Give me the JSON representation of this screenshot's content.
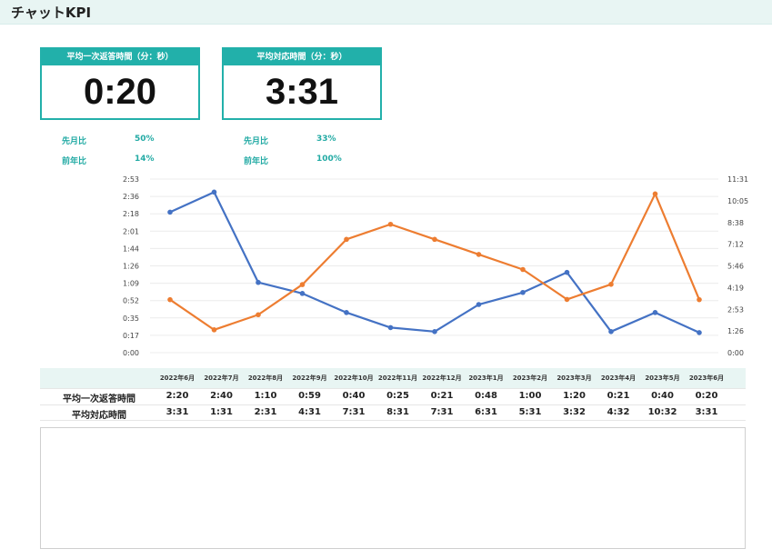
{
  "page": {
    "title": "チャットKPI"
  },
  "kpis": [
    {
      "label": "平均一次返答時間（分：秒）",
      "value": "0:20",
      "mom_label": "先月比",
      "mom": "50%",
      "yoy_label": "前年比",
      "yoy": "14%"
    },
    {
      "label": "平均対応時間（分：秒）",
      "value": "3:31",
      "mom_label": "先月比",
      "mom": "33%",
      "yoy_label": "前年比",
      "yoy": "100%"
    }
  ],
  "chart_data": {
    "type": "line",
    "categories": [
      "2022年6月",
      "2022年7月",
      "2022年8月",
      "2022年9月",
      "2022年10月",
      "2022年11月",
      "2022年12月",
      "2023年1月",
      "2023年2月",
      "2023年3月",
      "2023年4月",
      "2023年5月",
      "2023年6月"
    ],
    "series": [
      {
        "name": "平均一次返答時間",
        "axis": "left",
        "color": "#4472c4",
        "values_seconds": [
          140,
          160,
          70,
          59,
          40,
          25,
          21,
          48,
          60,
          80,
          21,
          40,
          20
        ],
        "labels": [
          "2:20",
          "2:40",
          "1:10",
          "0:59",
          "0:40",
          "0:25",
          "0:21",
          "0:48",
          "1:00",
          "1:20",
          "0:21",
          "0:40",
          "0:20"
        ]
      },
      {
        "name": "平均対応時間",
        "axis": "right",
        "color": "#ed7d31",
        "values_seconds": [
          211,
          91,
          151,
          271,
          451,
          511,
          451,
          391,
          331,
          212,
          272,
          632,
          211
        ],
        "labels": [
          "3:31",
          "1:31",
          "2:31",
          "4:31",
          "7:31",
          "8:31",
          "7:31",
          "6:31",
          "5:31",
          "3:32",
          "4:32",
          "10:32",
          "3:31"
        ]
      }
    ],
    "left_axis": {
      "ticks": [
        "0:00",
        "0:17",
        "0:35",
        "0:52",
        "1:09",
        "1:26",
        "1:44",
        "2:01",
        "2:18",
        "2:36",
        "2:53"
      ],
      "max_seconds": 173
    },
    "right_axis": {
      "ticks": [
        "0:00",
        "1:26",
        "2:53",
        "4:19",
        "5:46",
        "7:12",
        "8:38",
        "10:05",
        "11:31"
      ],
      "max_seconds": 691
    },
    "grid": true,
    "legend": "none"
  },
  "table": {
    "rows": [
      {
        "label": "平均一次返答時間",
        "series_index": 0
      },
      {
        "label": "平均対応時間",
        "series_index": 1
      }
    ]
  },
  "colors": {
    "accent": "#22b0aa",
    "series1": "#4472c4",
    "series2": "#ed7d31"
  }
}
